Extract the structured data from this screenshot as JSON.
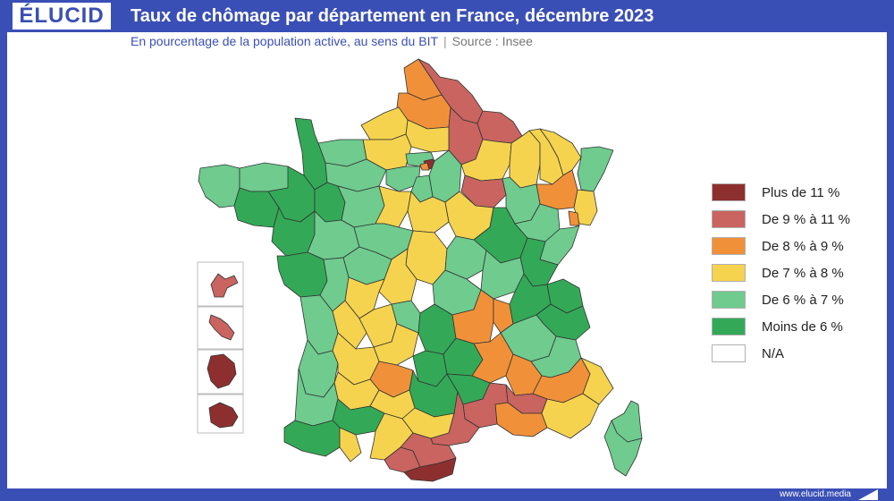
{
  "header": {
    "logo": "ÉLUCID",
    "title": "Taux de chômage par département en France, décembre 2023",
    "subtitle": "En pourcentage de la population active, au sens du BIT",
    "separator": "|",
    "source": "Source : Insee"
  },
  "legend": [
    {
      "label": "Plus de 11 %",
      "color": "#8e2f2f"
    },
    {
      "label": "De 9 % à 11 %",
      "color": "#c96460"
    },
    {
      "label": "De 8 % à 9 %",
      "color": "#f0913a"
    },
    {
      "label": "De 7 % à 8 %",
      "color": "#f5d34f"
    },
    {
      "label": "De 6 % à 7 %",
      "color": "#6fcb8e"
    },
    {
      "label": "Moins de 6 %",
      "color": "#33a957"
    },
    {
      "label": "N/A",
      "color": "#ffffff"
    }
  ],
  "footer": {
    "url": "www.elucid.media"
  }
}
